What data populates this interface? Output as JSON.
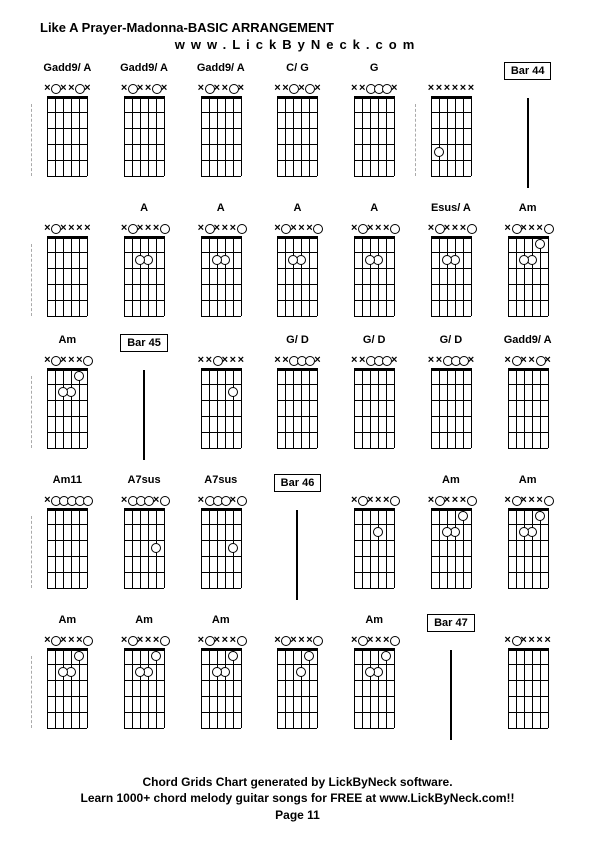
{
  "title": "Like A Prayer-Madonna-BASIC ARRANGEMENT",
  "url": "www.LickByNeck.com",
  "footer_line1": "Chord Grids Chart generated by LickByNeck software.",
  "footer_line2": "Learn 1000+ chord melody guitar songs for FREE at www.LickByNeck.com!!",
  "page_label": "Page 11",
  "diagram": {
    "strings": 6,
    "frets": 5,
    "width": 40,
    "height": 80
  },
  "cells": [
    [
      {
        "type": "chord",
        "label": "Gadd9/ A",
        "markers": [
          "x",
          "o",
          "x",
          "x",
          "o",
          "x"
        ],
        "dots": [],
        "dashed": true
      },
      {
        "type": "chord",
        "label": "Gadd9/ A",
        "markers": [
          "x",
          "o",
          "x",
          "x",
          "o",
          "x"
        ],
        "dots": []
      },
      {
        "type": "chord",
        "label": "Gadd9/ A",
        "markers": [
          "x",
          "o",
          "x",
          "x",
          "o",
          "x"
        ],
        "dots": []
      },
      {
        "type": "chord",
        "label": "C/ G",
        "markers": [
          "x",
          "x",
          "o",
          "x",
          "o",
          "x"
        ],
        "dots": []
      },
      {
        "type": "chord",
        "label": "G",
        "markers": [
          "x",
          "x",
          "o",
          "o",
          "o",
          "x"
        ],
        "dots": []
      },
      {
        "type": "chord",
        "label": "",
        "markers": [
          "x",
          "x",
          "x",
          "x",
          "x",
          "x"
        ],
        "dots": [
          {
            "s": 4,
            "f": 4
          }
        ],
        "dashed": true
      },
      {
        "type": "bar",
        "label": "Bar 44"
      }
    ],
    [
      {
        "type": "chord",
        "label": "",
        "markers": [
          "x",
          "o",
          "x",
          "x",
          "x",
          "x"
        ],
        "dots": [],
        "dashed": true
      },
      {
        "type": "chord",
        "label": "A",
        "markers": [
          "x",
          "o",
          "x",
          "x",
          "x",
          "o"
        ],
        "dots": [
          {
            "s": 2,
            "f": 2
          },
          {
            "s": 3,
            "f": 2
          }
        ]
      },
      {
        "type": "chord",
        "label": "A",
        "markers": [
          "x",
          "o",
          "x",
          "x",
          "x",
          "o"
        ],
        "dots": [
          {
            "s": 2,
            "f": 2
          },
          {
            "s": 3,
            "f": 2
          }
        ]
      },
      {
        "type": "chord",
        "label": "A",
        "markers": [
          "x",
          "o",
          "x",
          "x",
          "x",
          "o"
        ],
        "dots": [
          {
            "s": 2,
            "f": 2
          },
          {
            "s": 3,
            "f": 2
          }
        ]
      },
      {
        "type": "chord",
        "label": "A",
        "markers": [
          "x",
          "o",
          "x",
          "x",
          "x",
          "o"
        ],
        "dots": [
          {
            "s": 2,
            "f": 2
          },
          {
            "s": 3,
            "f": 2
          }
        ]
      },
      {
        "type": "chord",
        "label": "Esus/ A",
        "markers": [
          "x",
          "o",
          "x",
          "x",
          "x",
          "o"
        ],
        "dots": [
          {
            "s": 2,
            "f": 2
          },
          {
            "s": 3,
            "f": 2
          }
        ]
      },
      {
        "type": "chord",
        "label": "Am",
        "markers": [
          "x",
          "o",
          "x",
          "x",
          "x",
          "o"
        ],
        "dots": [
          {
            "s": 1,
            "f": 1
          },
          {
            "s": 2,
            "f": 2
          },
          {
            "s": 3,
            "f": 2
          }
        ]
      }
    ],
    [
      {
        "type": "chord",
        "label": "Am",
        "markers": [
          "x",
          "o",
          "x",
          "x",
          "x",
          "o"
        ],
        "dots": [
          {
            "s": 1,
            "f": 1
          },
          {
            "s": 2,
            "f": 2
          },
          {
            "s": 3,
            "f": 2
          }
        ],
        "dashed": true
      },
      {
        "type": "bar",
        "label": "Bar 45"
      },
      {
        "type": "chord",
        "label": "",
        "markers": [
          "x",
          "x",
          "o",
          "x",
          "x",
          "x"
        ],
        "dots": [
          {
            "s": 1,
            "f": 2
          }
        ]
      },
      {
        "type": "chord",
        "label": "G/ D",
        "markers": [
          "x",
          "x",
          "o",
          "o",
          "o",
          "x"
        ],
        "dots": []
      },
      {
        "type": "chord",
        "label": "G/ D",
        "markers": [
          "x",
          "x",
          "o",
          "o",
          "o",
          "x"
        ],
        "dots": []
      },
      {
        "type": "chord",
        "label": "G/ D",
        "markers": [
          "x",
          "x",
          "o",
          "o",
          "o",
          "x"
        ],
        "dots": []
      },
      {
        "type": "chord",
        "label": "Gadd9/ A",
        "markers": [
          "x",
          "o",
          "x",
          "x",
          "o",
          "x"
        ],
        "dots": []
      }
    ],
    [
      {
        "type": "chord",
        "label": "Am11",
        "markers": [
          "x",
          "o",
          "o",
          "o",
          "o",
          "o"
        ],
        "dots": [],
        "dashed": true
      },
      {
        "type": "chord",
        "label": "A7sus",
        "markers": [
          "x",
          "o",
          "o",
          "o",
          "x",
          "o"
        ],
        "dots": [
          {
            "s": 1,
            "f": 3
          }
        ]
      },
      {
        "type": "chord",
        "label": "A7sus",
        "markers": [
          "x",
          "o",
          "o",
          "o",
          "x",
          "o"
        ],
        "dots": [
          {
            "s": 1,
            "f": 3
          }
        ]
      },
      {
        "type": "bar",
        "label": "Bar 46"
      },
      {
        "type": "chord",
        "label": "",
        "markers": [
          "x",
          "o",
          "x",
          "x",
          "x",
          "o"
        ],
        "dots": [
          {
            "s": 2,
            "f": 2
          }
        ]
      },
      {
        "type": "chord",
        "label": "Am",
        "markers": [
          "x",
          "o",
          "x",
          "x",
          "x",
          "o"
        ],
        "dots": [
          {
            "s": 1,
            "f": 1
          },
          {
            "s": 2,
            "f": 2
          },
          {
            "s": 3,
            "f": 2
          }
        ]
      },
      {
        "type": "chord",
        "label": "Am",
        "markers": [
          "x",
          "o",
          "x",
          "x",
          "x",
          "o"
        ],
        "dots": [
          {
            "s": 1,
            "f": 1
          },
          {
            "s": 2,
            "f": 2
          },
          {
            "s": 3,
            "f": 2
          }
        ]
      }
    ],
    [
      {
        "type": "chord",
        "label": "Am",
        "markers": [
          "x",
          "o",
          "x",
          "x",
          "x",
          "o"
        ],
        "dots": [
          {
            "s": 1,
            "f": 1
          },
          {
            "s": 2,
            "f": 2
          },
          {
            "s": 3,
            "f": 2
          }
        ],
        "dashed": true
      },
      {
        "type": "chord",
        "label": "Am",
        "markers": [
          "x",
          "o",
          "x",
          "x",
          "x",
          "o"
        ],
        "dots": [
          {
            "s": 1,
            "f": 1
          },
          {
            "s": 2,
            "f": 2
          },
          {
            "s": 3,
            "f": 2
          }
        ]
      },
      {
        "type": "chord",
        "label": "Am",
        "markers": [
          "x",
          "o",
          "x",
          "x",
          "x",
          "o"
        ],
        "dots": [
          {
            "s": 1,
            "f": 1
          },
          {
            "s": 2,
            "f": 2
          },
          {
            "s": 3,
            "f": 2
          }
        ]
      },
      {
        "type": "chord",
        "label": "",
        "markers": [
          "x",
          "o",
          "x",
          "x",
          "x",
          "o"
        ],
        "dots": [
          {
            "s": 1,
            "f": 1
          },
          {
            "s": 2,
            "f": 2
          }
        ]
      },
      {
        "type": "chord",
        "label": "Am",
        "markers": [
          "x",
          "o",
          "x",
          "x",
          "x",
          "o"
        ],
        "dots": [
          {
            "s": 1,
            "f": 1
          },
          {
            "s": 2,
            "f": 2
          },
          {
            "s": 3,
            "f": 2
          }
        ]
      },
      {
        "type": "bar",
        "label": "Bar 47"
      },
      {
        "type": "chord",
        "label": "",
        "markers": [
          "x",
          "o",
          "x",
          "x",
          "x",
          "x"
        ],
        "dots": []
      }
    ]
  ]
}
